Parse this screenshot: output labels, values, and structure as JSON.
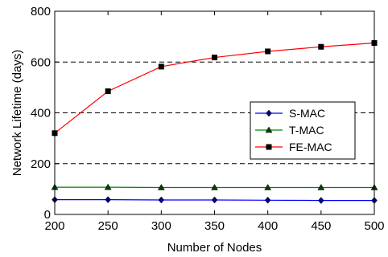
{
  "chart_data": {
    "type": "line",
    "xlabel": "Number of Nodes",
    "ylabel": "Network Lifetime (days)",
    "xlim": [
      200,
      500
    ],
    "ylim": [
      0,
      800
    ],
    "xticks": [
      200,
      250,
      300,
      350,
      400,
      450,
      500
    ],
    "yticks": [
      0,
      200,
      400,
      600,
      800
    ],
    "grid": "dashed horizontal at 200, 400, 600",
    "legend_position": "right",
    "x": [
      200,
      250,
      300,
      350,
      400,
      450,
      500
    ],
    "series": [
      {
        "name": "S-MAC",
        "color": "#0000ff",
        "marker": "diamond",
        "values": [
          58,
          58,
          57,
          57,
          56,
          55,
          55
        ]
      },
      {
        "name": "T-MAC",
        "color": "#008000",
        "marker": "triangle",
        "values": [
          107,
          107,
          106,
          106,
          106,
          106,
          106
        ]
      },
      {
        "name": "FE-MAC",
        "color": "#ff0000",
        "marker": "square",
        "values": [
          320,
          485,
          582,
          618,
          642,
          660,
          675
        ]
      }
    ]
  }
}
